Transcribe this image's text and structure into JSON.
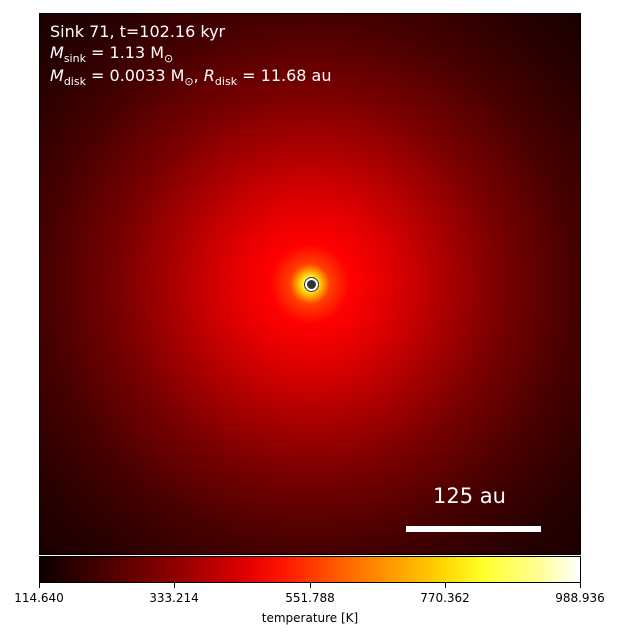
{
  "chart_data": {
    "type": "heatmap",
    "title_lines": {
      "line1": "Sink 71, t=102.16 kyr",
      "msink_symbol": "M",
      "msink_sub": "sink",
      "msink_value": " = 1.13 M",
      "msink_unit_sub": "⊙",
      "mdisk_symbol": "M",
      "mdisk_sub": "disk",
      "mdisk_value": " = 0.0033 M",
      "mdisk_unit_sub": "⊙",
      "rdisk_sep": ", ",
      "rdisk_symbol": "R",
      "rdisk_sub": "disk",
      "rdisk_value": " = 11.68 au"
    },
    "scale_bar_label": "125 au",
    "colorbar": {
      "label": "temperature [K]",
      "ticks": [
        "114.640",
        "333.214",
        "551.788",
        "770.362",
        "988.936"
      ],
      "vmin": 114.64,
      "vmax": 988.936,
      "colormap": "hot"
    },
    "grid": false
  }
}
